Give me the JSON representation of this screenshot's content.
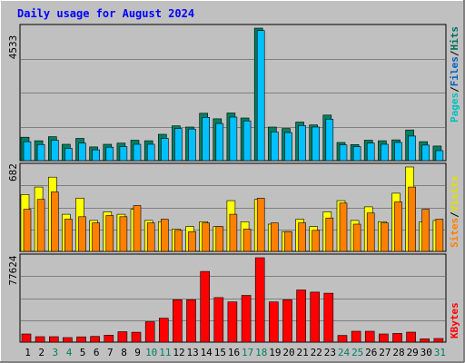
{
  "chart_data": {
    "type": "bar",
    "title": "Daily usage for August 2024",
    "categories": [
      "1",
      "2",
      "3",
      "4",
      "5",
      "6",
      "7",
      "8",
      "9",
      "10",
      "11",
      "12",
      "13",
      "14",
      "15",
      "16",
      "17",
      "18",
      "19",
      "20",
      "21",
      "22",
      "23",
      "24",
      "25",
      "26",
      "27",
      "28",
      "29",
      "30",
      "31"
    ],
    "weekend_days": [
      "3",
      "4",
      "10",
      "11",
      "17",
      "18",
      "24",
      "25",
      "31"
    ],
    "panels": [
      {
        "ymax_label": "4533",
        "ymax": 4533,
        "axis_labels": [
          "Pages",
          "/",
          "Files",
          "/",
          "Hits"
        ],
        "series": [
          {
            "name": "Hits",
            "values": [
              800,
              680,
              820,
              560,
              760,
              470,
              560,
              600,
              700,
              680,
              900,
              1190,
              1150,
              1620,
              1430,
              1630,
              1460,
              4533,
              1150,
              1100,
              1320,
              1220,
              1560,
              620,
              550,
              700,
              680,
              710,
              1050,
              650,
              500
            ]
          },
          {
            "name": "Files",
            "values": [
              650,
              550,
              700,
              420,
              600,
              370,
              460,
              480,
              560,
              560,
              760,
              1100,
              1080,
              1480,
              1270,
              1490,
              1360,
              4450,
              980,
              960,
              1200,
              1150,
              1420,
              540,
              480,
              600,
              560,
              620,
              840,
              530,
              340
            ]
          },
          {
            "name": "Pages",
            "values": []
          }
        ]
      },
      {
        "ymax_label": "682",
        "ymax": 682,
        "axis_labels": [
          "Sites",
          "/",
          "Visits"
        ],
        "series": [
          {
            "name": "Visits",
            "values": [
              460,
              520,
              600,
              300,
              430,
              250,
              320,
              300,
              340,
              250,
              240,
              180,
              200,
              240,
              200,
              410,
              240,
              420,
              220,
              160,
              260,
              200,
              320,
              410,
              250,
              360,
              240,
              470,
              682,
              240,
              250
            ]
          },
          {
            "name": "Sites",
            "values": [
              340,
              420,
              480,
              260,
              280,
              230,
              290,
              280,
              370,
              230,
              260,
              170,
              160,
              230,
              200,
              300,
              180,
              430,
              230,
              160,
              230,
              170,
              270,
              390,
              220,
              310,
              230,
              400,
              520,
              340,
              260
            ]
          }
        ]
      },
      {
        "ymax_label": "77624",
        "ymax": 77624,
        "axis_labels": [
          "KBytes"
        ],
        "series": [
          {
            "name": "KBytes",
            "values": [
              7500,
              5000,
              5000,
              4200,
              4800,
              5300,
              6400,
              9600,
              9100,
              18800,
              22000,
              39000,
              39000,
              65000,
              41000,
              37000,
              43000,
              77624,
              37000,
              39000,
              48000,
              46000,
              45000,
              6200,
              10000,
              10000,
              7500,
              8000,
              9200,
              3000,
              3300
            ]
          }
        ]
      }
    ]
  }
}
